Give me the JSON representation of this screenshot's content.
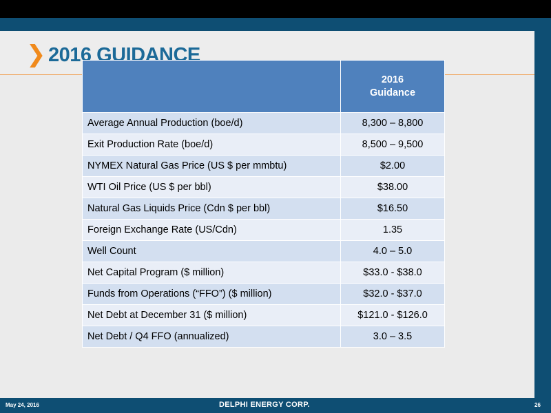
{
  "header": {
    "chevron": "❯",
    "title": "2016 GUIDANCE"
  },
  "table": {
    "column_header": [
      "2016",
      "Guidance"
    ],
    "rows": [
      {
        "label": "Average Annual Production (boe/d)",
        "value": "8,300 – 8,800"
      },
      {
        "label": "Exit Production Rate (boe/d)",
        "value": "8,500 – 9,500"
      },
      {
        "label": "NYMEX Natural Gas Price (US $ per mmbtu)",
        "value": "$2.00"
      },
      {
        "label": "WTI Oil Price (US $ per bbl)",
        "value": "$38.00"
      },
      {
        "label": "Natural Gas Liquids Price (Cdn $ per bbl)",
        "value": "$16.50"
      },
      {
        "label": "Foreign Exchange Rate (US/Cdn)",
        "value": "1.35"
      },
      {
        "label": "Well Count",
        "value": "4.0 – 5.0"
      },
      {
        "label": "Net Capital Program ($ million)",
        "value": "$33.0 - $38.0"
      },
      {
        "label": "Funds from Operations (“FFO”) ($ million)",
        "value": "$32.0 - $37.0"
      },
      {
        "label": "Net Debt at December 31 ($ million)",
        "value": "$121.0 - $126.0"
      },
      {
        "label": "Net Debt / Q4 FFO (annualized)",
        "value": "3.0 – 3.5"
      }
    ]
  },
  "footer": {
    "date": "May 24, 2016",
    "logo": "DELPHI ENERGY CORP.",
    "page": "26"
  },
  "colors": {
    "title": "#1c6a98",
    "chevron": "#f08a1c",
    "table_header": "#4f81bd",
    "row_odd": "#d3dff0",
    "row_even": "#e9eef7",
    "frame": "#0e4e73"
  }
}
